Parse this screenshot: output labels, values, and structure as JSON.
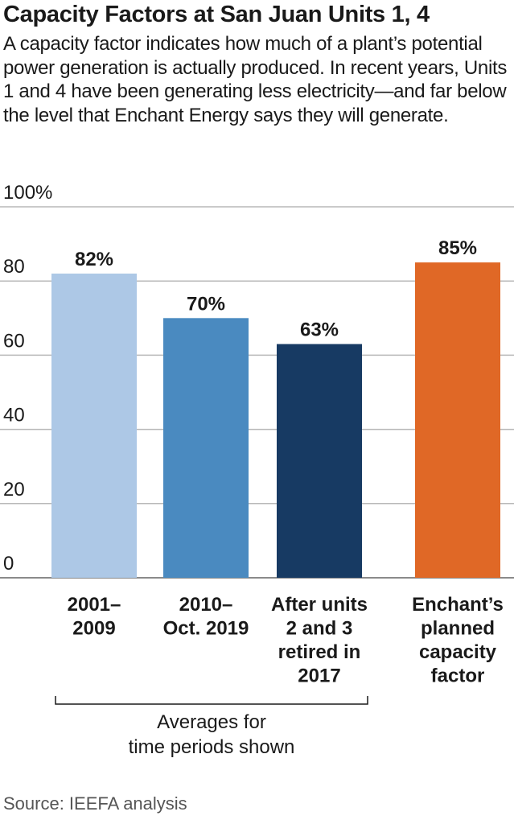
{
  "title": "Capacity Factors at San Juan Units 1, 4",
  "subtitle": "A capacity factor indicates how much of a plant’s potential power generation is actually produced. In recent years, Units 1 and 4 have been generating less electricity—and far below the level that Enchant Energy says they will generate.",
  "source": "Source: IEEFA analysis",
  "chart_data": {
    "type": "bar",
    "title": "Capacity Factors at San Juan Units 1, 4",
    "ylim": [
      0,
      100
    ],
    "yticks": [
      "0",
      "20",
      "40",
      "60",
      "80",
      "100%"
    ],
    "grid": true,
    "categories": [
      [
        "2001–",
        "2009"
      ],
      [
        "2010–",
        "Oct. 2019"
      ],
      [
        "After units",
        "2 and 3",
        "retired in",
        "2017"
      ],
      [
        "Enchant’s",
        "planned",
        "capacity",
        "factor"
      ]
    ],
    "values": [
      82,
      70,
      63,
      85
    ],
    "data_labels": [
      "82%",
      "70%",
      "63%",
      "85%"
    ],
    "colors": [
      "#adc8e6",
      "#4a8ac0",
      "#173a63",
      "#e06826"
    ],
    "bracket_label": [
      "Averages for",
      "time periods shown"
    ]
  }
}
